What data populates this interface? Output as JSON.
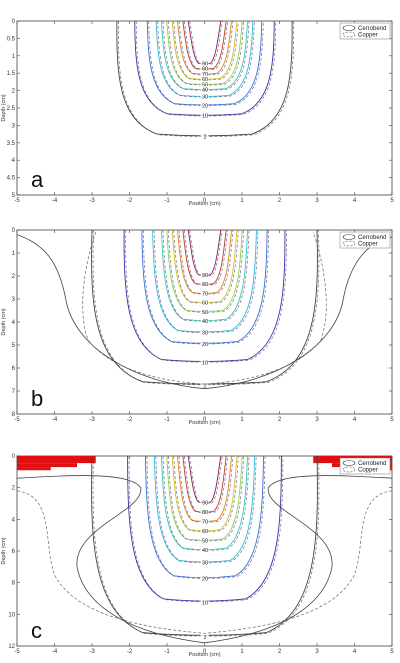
{
  "chart_data": [
    {
      "type": "contour",
      "panel_label": "a",
      "xlabel": "Position (cm)",
      "ylabel": "Depth (cm)",
      "xlim": [
        -5,
        5
      ],
      "ylim": [
        0,
        5
      ],
      "x_ticks": [
        "-5",
        "-4",
        "-3",
        "-2",
        "-1",
        "0",
        "1",
        "2",
        "3",
        "4",
        "5"
      ],
      "y_ticks": [
        "0",
        "0.5",
        "1",
        "1.5",
        "2",
        "2.5",
        "3",
        "3.5",
        "4",
        "4.5",
        "5"
      ],
      "legend": [
        "Cerrobend",
        "Copper"
      ],
      "contour_labels": [
        "90",
        "80",
        "70",
        "60",
        "50",
        "40",
        "30",
        "20",
        "10",
        "2"
      ],
      "contours": [
        {
          "level": 90,
          "half_width": 0.3,
          "depth": 1.25
        },
        {
          "level": 80,
          "half_width": 0.45,
          "depth": 1.4
        },
        {
          "level": 70,
          "half_width": 0.6,
          "depth": 1.55
        },
        {
          "level": 60,
          "half_width": 0.75,
          "depth": 1.7
        },
        {
          "level": 50,
          "half_width": 0.9,
          "depth": 1.85
        },
        {
          "level": 40,
          "half_width": 1.05,
          "depth": 2.0
        },
        {
          "level": 30,
          "half_width": 1.2,
          "depth": 2.2
        },
        {
          "level": 20,
          "half_width": 1.45,
          "depth": 2.45
        },
        {
          "level": 10,
          "half_width": 1.8,
          "depth": 2.75
        },
        {
          "level": 2,
          "half_width": 2.3,
          "depth": 3.35
        }
      ],
      "has_shield": false
    },
    {
      "type": "contour",
      "panel_label": "b",
      "xlabel": "Position (cm)",
      "ylabel": "Depth (cm)",
      "xlim": [
        -5,
        5
      ],
      "ylim": [
        0,
        8
      ],
      "x_ticks": [
        "-5",
        "-4",
        "-3",
        "-2",
        "-1",
        "0",
        "1",
        "2",
        "3",
        "4",
        "5"
      ],
      "y_ticks": [
        "0",
        "1",
        "2",
        "3",
        "4",
        "5",
        "6",
        "7",
        "8"
      ],
      "legend": [
        "Cerrobend",
        "Copper"
      ],
      "contour_labels": [
        "90",
        "80",
        "70",
        "60",
        "50",
        "40",
        "30",
        "20",
        "10",
        "2"
      ],
      "contours": [
        {
          "level": 90,
          "half_width": 0.3,
          "depth": 2.0
        },
        {
          "level": 80,
          "half_width": 0.45,
          "depth": 2.4
        },
        {
          "level": 70,
          "half_width": 0.6,
          "depth": 2.8
        },
        {
          "level": 60,
          "half_width": 0.75,
          "depth": 3.2
        },
        {
          "level": 50,
          "half_width": 0.9,
          "depth": 3.6
        },
        {
          "level": 40,
          "half_width": 1.05,
          "depth": 4.0
        },
        {
          "level": 30,
          "half_width": 1.3,
          "depth": 4.5
        },
        {
          "level": 20,
          "half_width": 1.6,
          "depth": 5.0
        },
        {
          "level": 10,
          "half_width": 2.1,
          "depth": 5.8
        },
        {
          "level": 2,
          "half_width": 3.0,
          "depth": 6.8
        }
      ],
      "has_shield": false
    },
    {
      "type": "contour",
      "panel_label": "c",
      "xlabel": "Position (cm)",
      "ylabel": "Depth (cm)",
      "xlim": [
        -5,
        5
      ],
      "ylim": [
        0,
        12
      ],
      "x_ticks": [
        "-5",
        "-4",
        "-3",
        "-2",
        "-1",
        "0",
        "1",
        "2",
        "3",
        "4",
        "5"
      ],
      "y_ticks": [
        "0",
        "2",
        "4",
        "6",
        "8",
        "10",
        "12"
      ],
      "legend": [
        "Cerrobend",
        "Copper"
      ],
      "contour_labels": [
        "90",
        "80",
        "70",
        "60",
        "50",
        "40",
        "30",
        "20",
        "10",
        "2"
      ],
      "contours": [
        {
          "level": 90,
          "half_width": 0.3,
          "depth": 3.0
        },
        {
          "level": 80,
          "half_width": 0.45,
          "depth": 3.6
        },
        {
          "level": 70,
          "half_width": 0.6,
          "depth": 4.2
        },
        {
          "level": 60,
          "half_width": 0.75,
          "depth": 4.8
        },
        {
          "level": 50,
          "half_width": 0.9,
          "depth": 5.4
        },
        {
          "level": 40,
          "half_width": 1.05,
          "depth": 6.0
        },
        {
          "level": 30,
          "half_width": 1.25,
          "depth": 6.8
        },
        {
          "level": 20,
          "half_width": 1.5,
          "depth": 7.8
        },
        {
          "level": 10,
          "half_width": 2.0,
          "depth": 9.3
        },
        {
          "level": 2,
          "half_width": 3.0,
          "depth": 11.5
        }
      ],
      "has_shield": true,
      "shield_color": "#e01010"
    }
  ],
  "colors": {
    "90": "#8b1a5a",
    "80": "#c0392b",
    "70": "#e67e22",
    "60": "#d4c020",
    "50": "#8fd14f",
    "40": "#3cc6b0",
    "30": "#32b8e0",
    "20": "#3a6fd8",
    "10": "#3b2fa8",
    "2": "#444444"
  }
}
